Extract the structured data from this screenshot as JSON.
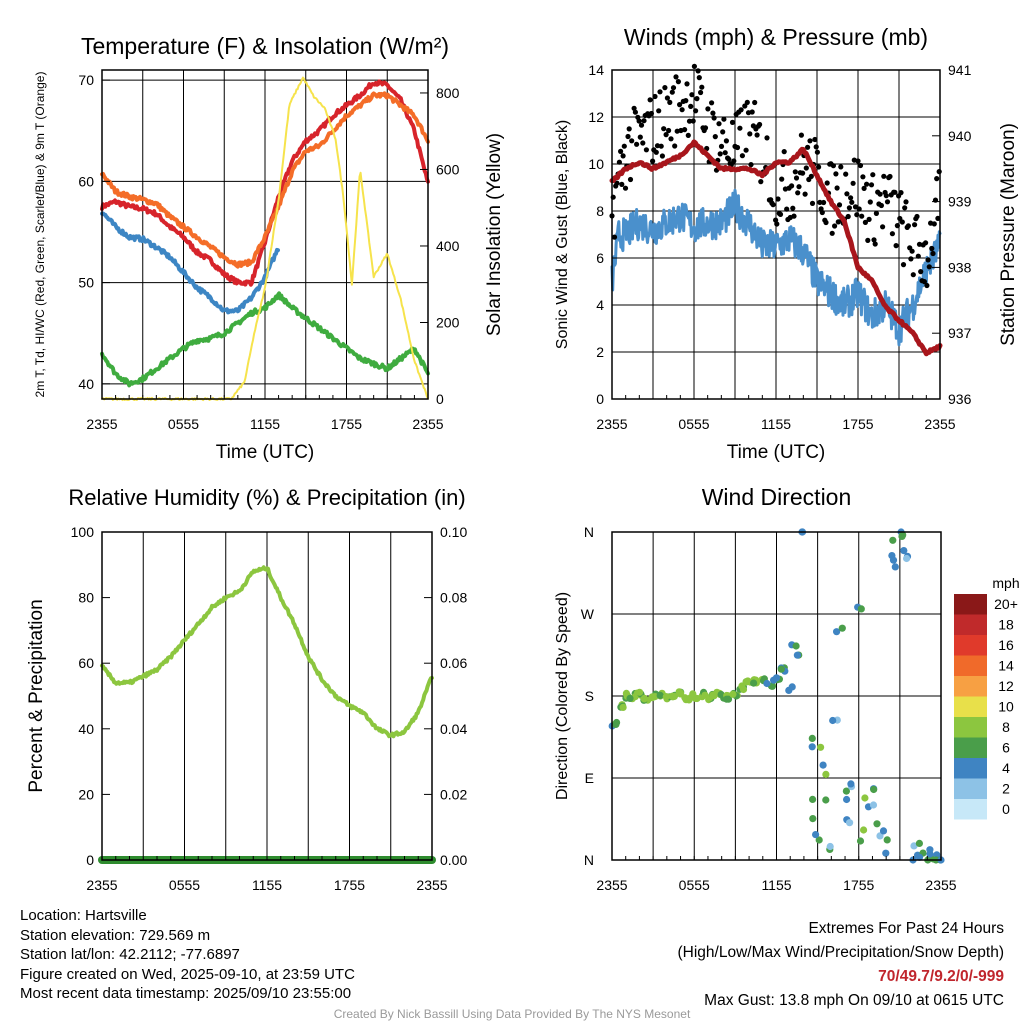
{
  "chart_data": [
    {
      "type": "line",
      "title": "Temperature (F) & Insolation (W/m²)",
      "xlabel": "Time (UTC)",
      "ylabel_left": "2m T, Td, HI/WC (Red, Green, Scarlet/Blue) & 9m T (Orange)",
      "ylabel_right": "Solar Insolation (Yellow)",
      "x_ticks": [
        "2355",
        "0555",
        "1155",
        "1755",
        "2355"
      ],
      "ylim_left": [
        38.5,
        71
      ],
      "yticks_left": [
        40,
        50,
        60,
        70
      ],
      "ylim_right": [
        0,
        860
      ],
      "yticks_right": [
        0,
        200,
        400,
        600,
        800
      ],
      "series": [
        {
          "name": "2m T",
          "color": "#d7242b",
          "axis": "left",
          "x": [
            0,
            1,
            2,
            3,
            4,
            5,
            6,
            7,
            8,
            9,
            10,
            11,
            12,
            13,
            14,
            15,
            16,
            17,
            18,
            19,
            20,
            21,
            22,
            23,
            24
          ],
          "y": [
            57.5,
            58,
            57.5,
            57.3,
            56.8,
            55.5,
            54.5,
            53,
            52.2,
            50.8,
            50,
            50,
            54,
            58.5,
            62,
            64,
            65,
            66.5,
            67.5,
            68.5,
            69.8,
            69.5,
            68,
            65,
            59.8
          ]
        },
        {
          "name": "9m T",
          "color": "#f46d28",
          "axis": "left",
          "x": [
            0,
            1,
            2,
            3,
            4,
            5,
            6,
            7,
            8,
            9,
            10,
            11,
            12,
            13,
            14,
            15,
            16,
            17,
            18,
            19,
            20,
            21,
            22,
            23,
            24
          ],
          "y": [
            60.8,
            59,
            58.5,
            58.2,
            57.8,
            56.5,
            55.5,
            54.5,
            53.5,
            52.5,
            51.8,
            52,
            54.5,
            57.5,
            61,
            63,
            63.5,
            65,
            66.5,
            67.5,
            68.5,
            68.5,
            67.5,
            66.5,
            64
          ]
        },
        {
          "name": "HI/WC",
          "color": "#3d86c4",
          "axis": "left",
          "x": [
            0,
            1,
            2,
            3,
            4,
            5,
            6,
            7,
            8,
            9,
            10,
            11,
            12,
            13
          ],
          "y": [
            57,
            55.5,
            54.5,
            54.3,
            53.5,
            52.5,
            51,
            49.5,
            48.5,
            47.2,
            47.2,
            48.5,
            50.5,
            53.5
          ]
        },
        {
          "name": "2m Td",
          "color": "#3fac3f",
          "axis": "left",
          "x": [
            0,
            1,
            2,
            3,
            4,
            5,
            6,
            7,
            8,
            9,
            10,
            11,
            12,
            13,
            14,
            15,
            16,
            17,
            18,
            19,
            20,
            21,
            22,
            23,
            24
          ],
          "y": [
            43,
            41,
            40,
            40.5,
            41.5,
            42.5,
            43.5,
            44.3,
            44.5,
            45,
            46,
            47,
            47.5,
            48.8,
            47.5,
            46.5,
            45.5,
            44.5,
            43.5,
            42.5,
            42,
            41.5,
            42.5,
            43.5,
            41
          ]
        },
        {
          "name": "Solar Insolation",
          "color": "#f6e34c",
          "axis": "right",
          "x": [
            0,
            9.5,
            10.5,
            11.2,
            12,
            13,
            13.8,
            14.8,
            15.6,
            16.4,
            17.2,
            17.8,
            18.4,
            19,
            19.5,
            20,
            21,
            22,
            23,
            24
          ],
          "y": [
            0,
            0,
            45,
            170,
            290,
            520,
            770,
            840,
            790,
            760,
            680,
            520,
            300,
            600,
            460,
            320,
            380,
            260,
            100,
            0
          ]
        }
      ]
    },
    {
      "type": "line",
      "title": "Winds (mph) & Pressure (mb)",
      "xlabel": "Time (UTC)",
      "ylabel_left": "Sonic Wind & Gust (Blue, Black)",
      "ylabel_right": "Station Pressure (Maroon)",
      "x_ticks": [
        "2355",
        "0555",
        "1155",
        "1755",
        "2355"
      ],
      "ylim_left": [
        0,
        14
      ],
      "yticks_left": [
        0,
        2,
        4,
        6,
        8,
        10,
        12,
        14
      ],
      "ylim_right": [
        936,
        941
      ],
      "yticks_right": [
        936,
        937,
        938,
        939,
        940,
        941
      ],
      "series": [
        {
          "name": "Sonic Wind",
          "color": "#4a90cc",
          "axis": "left",
          "x": [
            0,
            0.5,
            1,
            2,
            3,
            4,
            5,
            6,
            7,
            8,
            9,
            10,
            11,
            12,
            13,
            14,
            15,
            16,
            17,
            18,
            19,
            20,
            21,
            22,
            23,
            24
          ],
          "y": [
            5,
            7,
            7,
            7.5,
            7.2,
            7.5,
            7.8,
            7.3,
            7.5,
            7.5,
            8.2,
            7.5,
            6.5,
            6.5,
            6.8,
            6.3,
            5,
            4.5,
            4,
            4.5,
            3.5,
            4,
            3,
            4,
            5.5,
            6.5
          ]
        },
        {
          "name": "Gust",
          "color": "#000000",
          "axis": "left",
          "style": "points",
          "x": [
            0,
            1,
            2,
            3,
            4,
            5,
            6,
            7,
            8,
            9,
            10,
            11,
            12,
            13,
            14,
            15,
            16,
            17,
            18,
            19,
            20,
            21,
            22,
            23,
            24
          ],
          "y": [
            8,
            10.5,
            11,
            11.5,
            12,
            12.5,
            13,
            11.5,
            11,
            10.5,
            11.5,
            10.5,
            9,
            9,
            10,
            9.5,
            8.5,
            9,
            9,
            8,
            8.5,
            7.5,
            6.5,
            6,
            8.5
          ]
        },
        {
          "name": "Station Pressure",
          "color": "#a8161c",
          "axis": "right",
          "x": [
            0,
            1,
            2,
            3,
            4,
            5,
            6,
            7,
            8,
            9,
            10,
            11,
            12,
            13,
            14,
            15,
            16,
            17,
            18,
            19,
            20,
            21,
            22,
            23,
            24
          ],
          "y": [
            939.3,
            939.5,
            939.6,
            939.5,
            939.6,
            939.7,
            939.9,
            939.7,
            939.5,
            939.5,
            939.5,
            939.4,
            939.6,
            939.6,
            939.8,
            939.4,
            939.0,
            938.7,
            938.0,
            937.8,
            937.4,
            937.2,
            937.0,
            936.7,
            936.8
          ]
        }
      ]
    },
    {
      "type": "line",
      "title": "Relative Humidity (%) & Precipitation (in)",
      "xlabel": "",
      "ylabel_left": "Percent & Precipitation",
      "x_ticks": [
        "2355",
        "0555",
        "1155",
        "1755",
        "2355"
      ],
      "ylim_left": [
        0,
        100
      ],
      "yticks_left": [
        0,
        20,
        40,
        60,
        80,
        100
      ],
      "ylim_right": [
        0,
        0.1
      ],
      "yticks_right": [
        "0.00",
        "0.02",
        "0.04",
        "0.06",
        "0.08",
        "0.10"
      ],
      "series": [
        {
          "name": "Relative Humidity",
          "color": "#8cc63f",
          "axis": "left",
          "x": [
            0,
            1,
            2,
            3,
            4,
            5,
            6,
            7,
            8,
            9,
            10,
            11,
            12,
            13,
            14,
            15,
            16,
            17,
            18,
            19,
            20,
            21,
            22,
            23,
            24
          ],
          "y": [
            59,
            54,
            54,
            56,
            58,
            62,
            67,
            72,
            77,
            80,
            82,
            88,
            89,
            80,
            72,
            62,
            55,
            50,
            47,
            45,
            40,
            38,
            39,
            45,
            56
          ]
        },
        {
          "name": "Precipitation",
          "color": "#2e8c2e",
          "axis": "right",
          "x": [
            0,
            24
          ],
          "y": [
            0,
            0
          ]
        }
      ]
    },
    {
      "type": "scatter",
      "title": "Wind Direction",
      "ylabel_left": "Direction (Colored By Speed)",
      "x_ticks": [
        "2355",
        "0555",
        "1155",
        "1755",
        "2355"
      ],
      "y_ticks": [
        "N",
        "E",
        "S",
        "W",
        "N"
      ],
      "ylim_left": [
        0,
        360
      ],
      "legend_title": "mph",
      "legend_labels": [
        "0",
        "2",
        "4",
        "6",
        "8",
        "10",
        "12",
        "14",
        "16",
        "18",
        "20+"
      ],
      "legend_colors": [
        "#c7e8f8",
        "#8dc2e6",
        "#3f84c2",
        "#4a9e4a",
        "#8cc63f",
        "#e8e04a",
        "#f7a043",
        "#f06a2a",
        "#e03a2b",
        "#c02a2b",
        "#8a1818"
      ],
      "points": {
        "x": [
          0.2,
          0.6,
          1,
          1.5,
          2,
          2.5,
          3,
          3.5,
          4,
          4.5,
          5,
          5.5,
          6,
          6.5,
          7,
          7.5,
          8,
          8.5,
          9,
          9.5,
          10,
          10.5,
          11,
          11.5,
          12,
          12.5,
          13,
          13.3,
          13.6,
          14,
          14.4,
          14.7,
          15,
          15.3,
          15.6,
          16,
          16.3,
          16.6,
          17,
          17.3,
          17.6,
          18,
          18.3,
          18.6,
          19,
          19.3,
          19.6,
          20,
          20.3,
          20.6,
          21,
          21.3,
          21.6,
          22,
          22.3,
          22.6,
          23,
          23.3,
          23.6,
          24
        ],
        "y": [
          150,
          170,
          180,
          180,
          182,
          178,
          180,
          183,
          178,
          180,
          182,
          178,
          180,
          181,
          179,
          183,
          180,
          178,
          182,
          188,
          195,
          197,
          196,
          192,
          200,
          210,
          200,
          225,
          215,
          355,
          120,
          60,
          30,
          110,
          80,
          20,
          150,
          240,
          70,
          45,
          95,
          280,
          30,
          60,
          90,
          50,
          35,
          10,
          340,
          330,
          358,
          350,
          345,
          5,
          8,
          2,
          4,
          6,
          3,
          5
        ],
        "speed": [
          4,
          8,
          6,
          6,
          8,
          8,
          6,
          8,
          8,
          8,
          6,
          8,
          8,
          8,
          8,
          8,
          6,
          8,
          8,
          6,
          6,
          8,
          8,
          8,
          6,
          6,
          4,
          4,
          6,
          4,
          4,
          6,
          6,
          4,
          8,
          6,
          2,
          4,
          6,
          4,
          2,
          4,
          6,
          8,
          4,
          6,
          2,
          4,
          6,
          4,
          4,
          6,
          4,
          2,
          4,
          6,
          4,
          6,
          4,
          6
        ]
      }
    }
  ],
  "info": {
    "location": "Location: Hartsville",
    "elevation": "Station elevation: 729.569 m",
    "latlon": "Station lat/lon: 42.2112; -77.6897",
    "created": "Figure created on Wed, 2025-09-10, at 23:59 UTC",
    "recent": "Most recent data timestamp: 2025/09/10 23:55:00"
  },
  "extremes": {
    "title": "Extremes For Past 24 Hours",
    "subtitle": "(High/Low/Max Wind/Precipitation/Snow Depth)",
    "values": "70/49.7/9.2/0/-999",
    "gust": "Max Gust: 13.8 mph On 09/10 at 0615 UTC"
  },
  "credit": "Created By Nick Bassill Using Data Provided By The NYS Mesonet"
}
